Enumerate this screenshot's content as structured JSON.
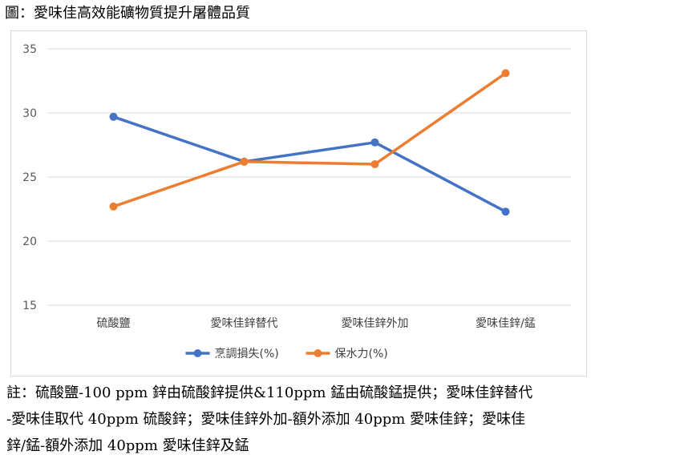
{
  "figure_title": "圖：愛味佳高效能礦物質提升屠體品質",
  "chart_data": {
    "type": "line",
    "categories": [
      "硫酸鹽",
      "愛味佳鋅替代",
      "愛味佳鋅外加",
      "愛味佳鋅/錳"
    ],
    "series": [
      {
        "name": "烹調損失(%)",
        "color": "#4472C4",
        "values": [
          29.7,
          26.2,
          27.7,
          22.3
        ]
      },
      {
        "name": "保水力(%)",
        "color": "#ED7D31",
        "values": [
          22.7,
          26.2,
          26.0,
          33.1
        ]
      }
    ],
    "yticks": [
      "15",
      "20",
      "25",
      "30",
      "35"
    ],
    "ylim": [
      15,
      35
    ],
    "grid": true,
    "legend_position": "bottom"
  },
  "note": {
    "lines": [
      "註：硫酸鹽-100 ppm 鋅由硫酸鋅提供&110ppm 錳由硫酸錳提供；愛味佳鋅替代",
      "-愛味佳取代 40ppm 硫酸鋅；愛味佳鋅外加-額外添加 40ppm 愛味佳鋅；愛味佳",
      "鋅/錳-額外添加 40ppm 愛味佳鋅及錳"
    ]
  }
}
